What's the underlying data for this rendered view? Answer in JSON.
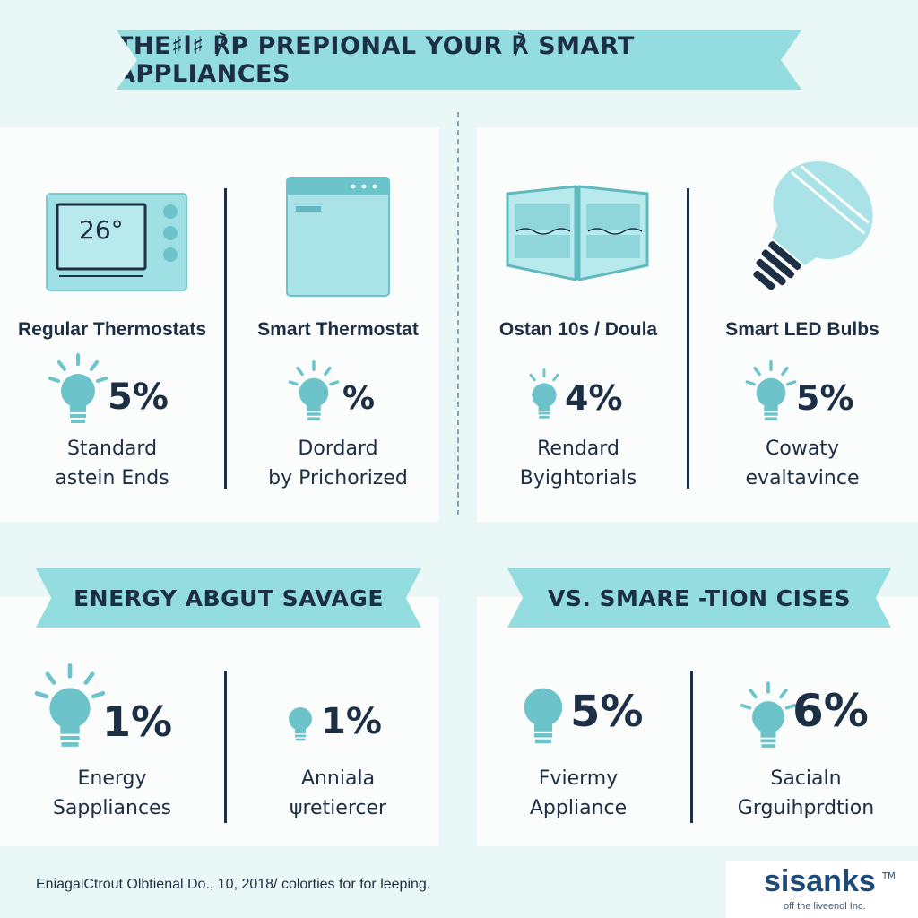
{
  "title": "THE♯l♯ ℟P PREPIONAL YOUR ℟ SMART APPLIANCES",
  "top_cards": [
    {
      "label": "Regular Thermostats",
      "percent": "5%",
      "desc1": "Standard",
      "desc2": "astein Ends",
      "icon": "thermostat-icon",
      "display": "26°"
    },
    {
      "label": "Smart Thermostat",
      "percent": "%",
      "desc1": "Dordard",
      "desc2": "by Prichorized",
      "icon": "refrigerator-icon"
    },
    {
      "label": "Ostan 10s / Doula",
      "percent": "4%",
      "desc1": "Rendard",
      "desc2": "Byightorials",
      "icon": "window-panel-icon"
    },
    {
      "label": "Smart LED Bulbs",
      "percent": "5%",
      "desc1": "Cowaty",
      "desc2": "evaltavince",
      "icon": "led-bulb-icon"
    }
  ],
  "section_left": {
    "banner": "ENERGY ABGUT SAVAGE",
    "items": [
      {
        "percent": "1%",
        "desc1": "Energy",
        "desc2": "Sappliances"
      },
      {
        "percent": "1%",
        "desc1": "Anniala",
        "desc2": "ψretiercer"
      }
    ]
  },
  "section_right": {
    "banner": "VS. SMARE -TION CISES",
    "items": [
      {
        "percent": "5%",
        "desc1": "Fviermy",
        "desc2": "Appliance"
      },
      {
        "percent": "6%",
        "desc1": "Sacialn",
        "desc2": "Grguihprdtion"
      }
    ]
  },
  "footnote": "EniagalCtrout Olbtienal Do., 10, 2018/ colorties for for leeping.",
  "logo": {
    "name": "sisanks",
    "tm": "TM",
    "sub": "off the liveenol Inc."
  },
  "colors": {
    "accent": "#93dce0",
    "text": "#1d2f44",
    "panel": "#fbfdfd",
    "background": "#eaf7f7"
  }
}
